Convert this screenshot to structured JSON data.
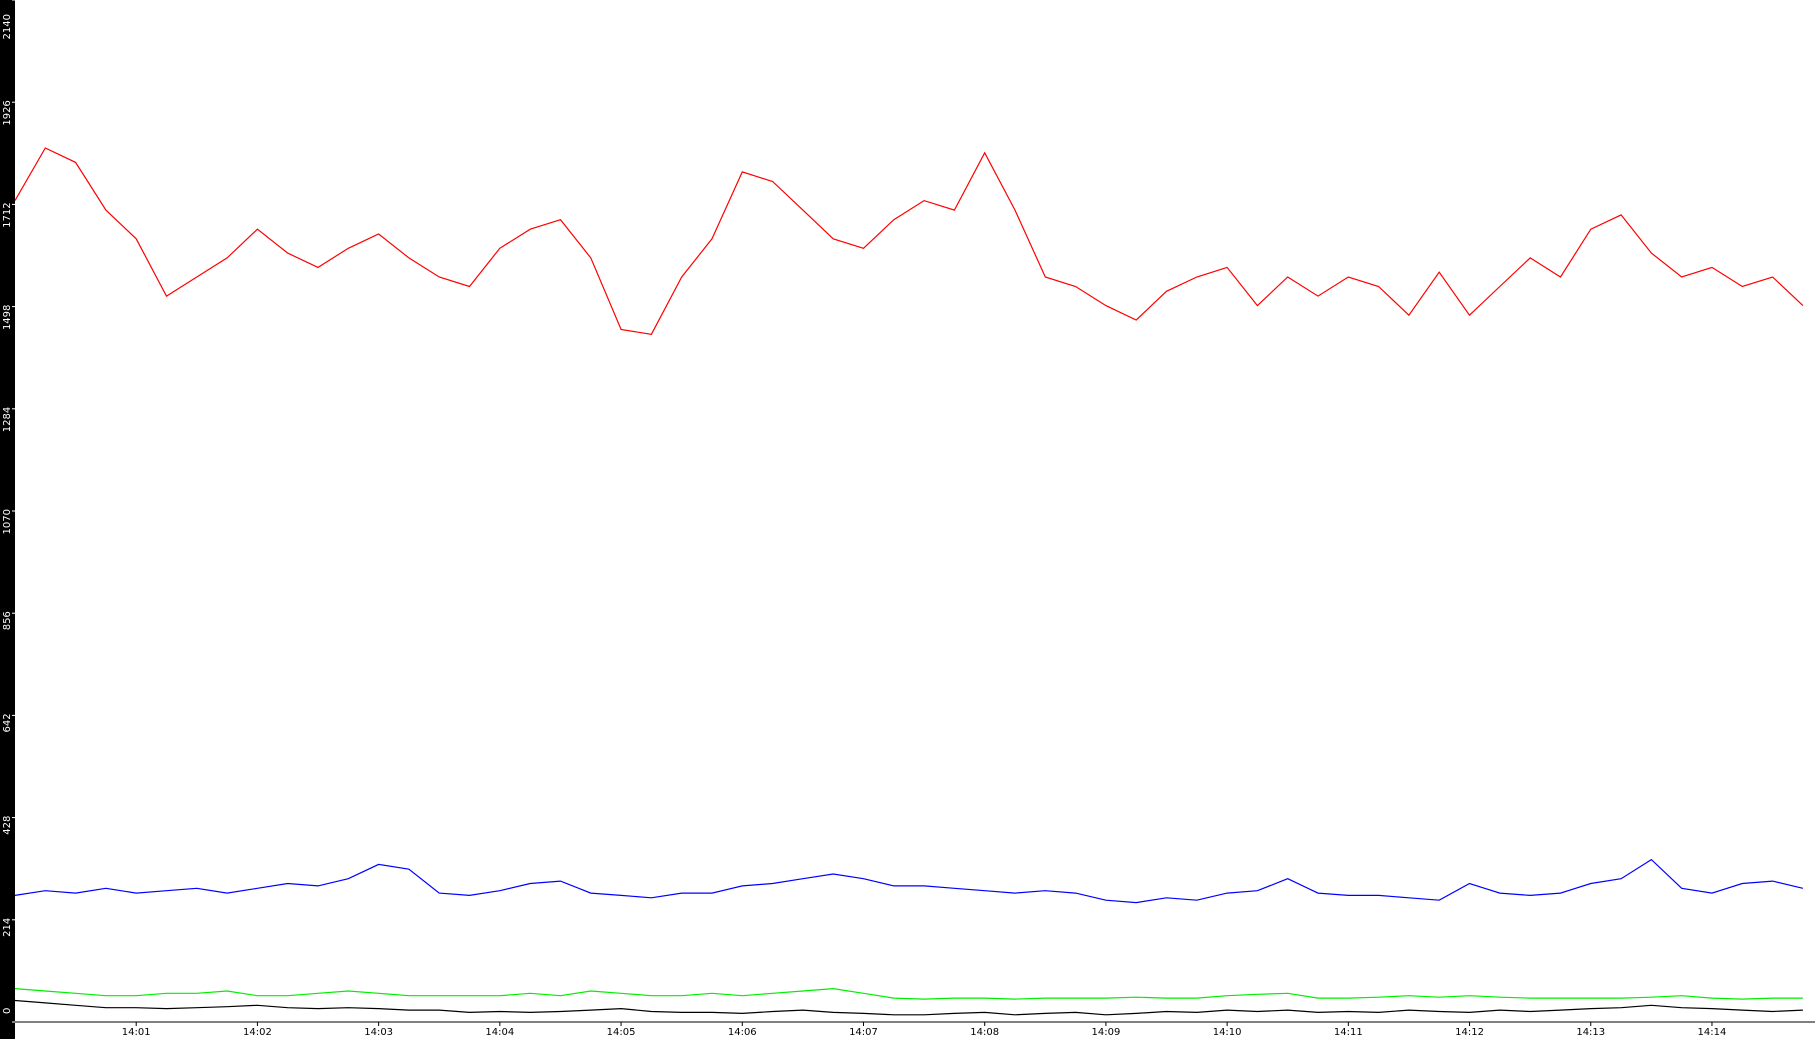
{
  "chart_data": {
    "type": "line",
    "categories": [
      null,
      null,
      null,
      null,
      "14:01",
      null,
      null,
      null,
      "14:02",
      null,
      null,
      null,
      "14:03",
      null,
      null,
      null,
      "14:04",
      null,
      null,
      null,
      "14:05",
      null,
      null,
      null,
      "14:06",
      null,
      null,
      null,
      "14:07",
      null,
      null,
      null,
      "14:08",
      null,
      null,
      null,
      "14:09",
      null,
      null,
      null,
      "14:10",
      null,
      null,
      null,
      "14:11",
      null,
      null,
      null,
      "14:12",
      null,
      null,
      null,
      "14:13",
      null,
      null,
      null,
      "14:14",
      null,
      null,
      null
    ],
    "series": [
      {
        "color": "#ff0000",
        "values": [
          1720,
          1830,
          1800,
          1700,
          1640,
          1520,
          1560,
          1600,
          1660,
          1610,
          1580,
          1620,
          1650,
          1600,
          1560,
          1540,
          1620,
          1660,
          1680,
          1600,
          1450,
          1440,
          1560,
          1640,
          1780,
          1760,
          1700,
          1640,
          1620,
          1680,
          1720,
          1700,
          1820,
          1700,
          1560,
          1540,
          1500,
          1470,
          1530,
          1560,
          1580,
          1500,
          1560,
          1520,
          1560,
          1540,
          1480,
          1570,
          1480,
          1540,
          1600,
          1560,
          1660,
          1690,
          1610,
          1560,
          1580,
          1540,
          1560,
          1500
        ]
      },
      {
        "color": "#0000ff",
        "values": [
          265,
          275,
          270,
          280,
          270,
          275,
          280,
          270,
          280,
          290,
          285,
          300,
          330,
          320,
          270,
          265,
          275,
          290,
          295,
          270,
          265,
          260,
          270,
          270,
          285,
          290,
          300,
          310,
          300,
          285,
          285,
          280,
          275,
          270,
          275,
          270,
          255,
          250,
          260,
          255,
          270,
          275,
          300,
          270,
          265,
          265,
          260,
          255,
          290,
          270,
          265,
          270,
          290,
          300,
          340,
          280,
          270,
          290,
          295,
          280
        ]
      },
      {
        "color": "#00ee00",
        "values": [
          70,
          65,
          60,
          55,
          55,
          60,
          60,
          65,
          55,
          55,
          60,
          65,
          60,
          55,
          55,
          55,
          55,
          60,
          55,
          65,
          60,
          55,
          55,
          60,
          55,
          60,
          65,
          70,
          60,
          50,
          48,
          50,
          50,
          48,
          50,
          50,
          50,
          52,
          50,
          50,
          55,
          58,
          60,
          50,
          50,
          52,
          55,
          52,
          55,
          52,
          50,
          50,
          50,
          50,
          52,
          55,
          50,
          48,
          50,
          50
        ]
      },
      {
        "color": "#000000",
        "values": [
          45,
          40,
          35,
          30,
          30,
          28,
          30,
          32,
          35,
          30,
          28,
          30,
          28,
          25,
          25,
          20,
          22,
          20,
          22,
          25,
          28,
          22,
          20,
          20,
          18,
          22,
          25,
          20,
          18,
          15,
          15,
          18,
          20,
          15,
          18,
          20,
          15,
          18,
          22,
          20,
          25,
          22,
          25,
          20,
          22,
          20,
          25,
          22,
          20,
          25,
          22,
          25,
          28,
          30,
          35,
          30,
          28,
          25,
          22,
          25
        ]
      }
    ],
    "ylim": [
      0,
      2140
    ],
    "yticks": [
      0,
      214,
      428,
      642,
      856,
      1070,
      1284,
      1498,
      1712,
      1926,
      2140
    ]
  }
}
